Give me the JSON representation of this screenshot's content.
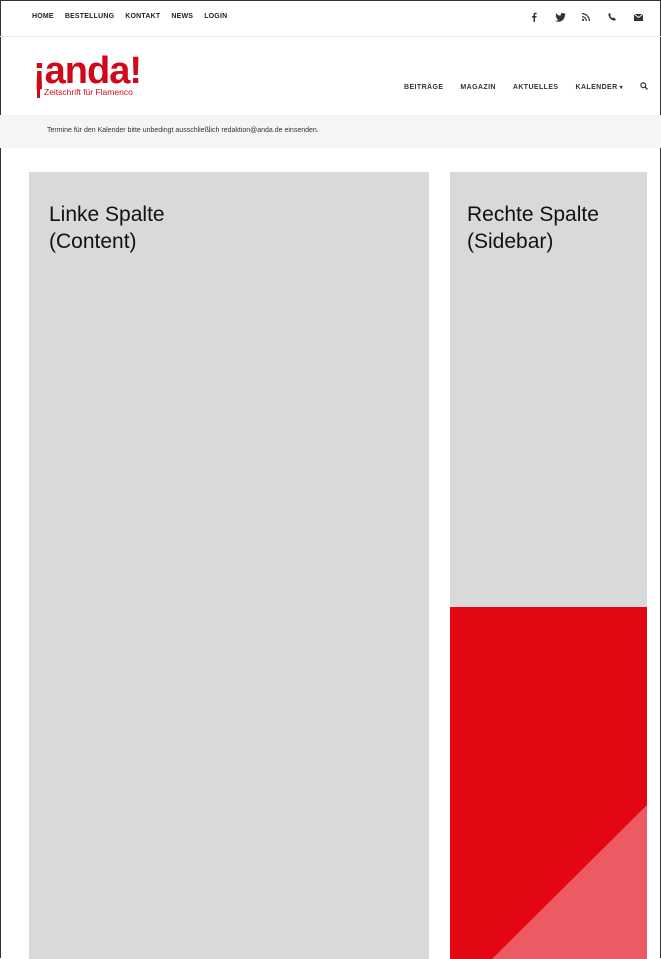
{
  "topnav": {
    "items": [
      "HOME",
      "BESTELLUNG",
      "KONTAKT",
      "NEWS",
      "LOGIN"
    ]
  },
  "social": {
    "icons": [
      "facebook-icon",
      "twitter-icon",
      "rss-icon",
      "phone-icon",
      "mail-icon"
    ]
  },
  "logo": {
    "word": "¡anda!",
    "tagline": "Zeitschrift für Flamenco",
    "color": "#d0081a"
  },
  "mainnav": {
    "items": [
      "BEITRÄGE",
      "MAGAZIN",
      "AKTUELLES",
      "KALENDER"
    ]
  },
  "notice": {
    "text": "Termine für den Kalender bitte unbedingt ausschließlich redaktion@anda.de einsenden."
  },
  "left_column": {
    "title": "Linke Spalte",
    "subtitle": "(Content)"
  },
  "right_column": {
    "title": "Rechte Spalte",
    "subtitle": "(Sidebar)",
    "accent_color": "#e30613",
    "accent_light": "#ee5a64"
  }
}
